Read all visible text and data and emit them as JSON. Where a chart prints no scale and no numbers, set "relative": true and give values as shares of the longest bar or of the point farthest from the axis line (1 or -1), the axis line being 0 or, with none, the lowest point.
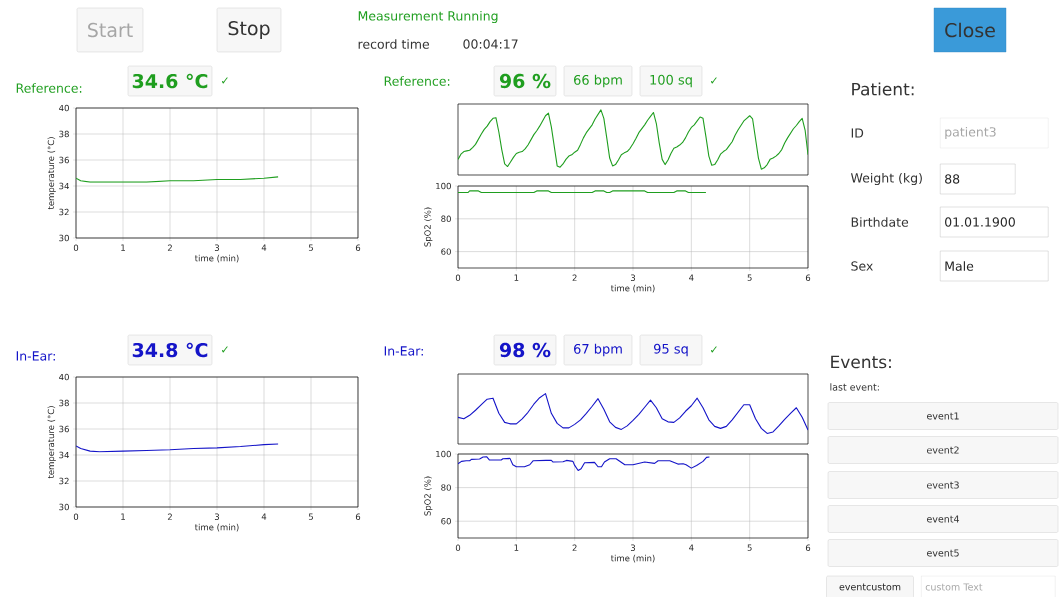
{
  "chart_data": [
    {
      "type": "other",
      "annotations": [
        "Start",
        "Stop",
        "Measurement Running",
        "record time",
        "00:04:17",
        "Close",
        "Patient:",
        "ID",
        "patient3",
        "Weight (kg)",
        "88",
        "Birthdate",
        "01.01.1900",
        "Sex",
        "Male",
        "Events:",
        "last event:",
        "event1",
        "event2",
        "event3",
        "event4",
        "event5",
        "eventcustom",
        "custom Text"
      ]
    },
    {
      "type": "line",
      "xlabel": "time (min)",
      "ylabel": "temperature (°C)",
      "xlim": [
        0,
        6
      ],
      "ylim": [
        30,
        40
      ],
      "xticks": [
        0,
        1,
        2,
        3,
        4,
        5,
        6
      ],
      "yticks": [
        30,
        32,
        34,
        36,
        38,
        40
      ],
      "grid": true,
      "annotations": [
        "Reference:",
        "34.6 °C",
        "✓"
      ],
      "series": [
        {
          "color": "#1f9e1f",
          "x": [
            0,
            0.1,
            0.3,
            0.6,
            1,
            1.5,
            2,
            2.5,
            3,
            3.5,
            4,
            4.3
          ],
          "values": [
            34.6,
            34.4,
            34.3,
            34.3,
            34.3,
            34.3,
            34.4,
            34.4,
            34.5,
            34.5,
            34.6,
            34.7
          ]
        }
      ]
    },
    {
      "type": "line",
      "relative": true,
      "annotations": [
        "Reference:",
        "96 %",
        "66 bpm",
        "100 sq",
        "✓"
      ],
      "categories": [
        null,
        null,
        null,
        null,
        null,
        null,
        null,
        null,
        null,
        null,
        null,
        null,
        null,
        null,
        null,
        null,
        null,
        null,
        null,
        null,
        null,
        null,
        null,
        null,
        null,
        null,
        null,
        null,
        null,
        null,
        null,
        null,
        null,
        null,
        null,
        null,
        null,
        null,
        null,
        null,
        null,
        null,
        null,
        null,
        null,
        null,
        null,
        null,
        null,
        null,
        null,
        null,
        null,
        null,
        null,
        null,
        null,
        null,
        null,
        null,
        null,
        null,
        null,
        null,
        null,
        null,
        null,
        null,
        null,
        null,
        null,
        null,
        null,
        null,
        null,
        null,
        null,
        null,
        null,
        null,
        null,
        null,
        null,
        null,
        null,
        null,
        null,
        null,
        null,
        null,
        null,
        null,
        null,
        null,
        null,
        null,
        null,
        null,
        null,
        null,
        null,
        null,
        null,
        null,
        null,
        null,
        null,
        null,
        null,
        null,
        null,
        null,
        null,
        null,
        null,
        null,
        null,
        null,
        null,
        null,
        null
      ],
      "series": [
        {
          "color": "#1f9e1f",
          "values": [
            0.24,
            0.32,
            0.36,
            0.37,
            0.38,
            0.42,
            0.47,
            0.55,
            0.63,
            0.7,
            0.75,
            0.82,
            0.87,
            0.88,
            0.66,
            0.39,
            0.17,
            0.13,
            0.2,
            0.27,
            0.33,
            0.35,
            0.36,
            0.4,
            0.46,
            0.54,
            0.62,
            0.68,
            0.75,
            0.83,
            0.91,
            0.95,
            0.74,
            0.44,
            0.14,
            0.12,
            0.17,
            0.24,
            0.29,
            0.31,
            0.35,
            0.38,
            0.47,
            0.57,
            0.65,
            0.71,
            0.77,
            0.86,
            0.93,
            1.0,
            0.87,
            0.57,
            0.26,
            0.14,
            0.16,
            0.23,
            0.31,
            0.34,
            0.36,
            0.41,
            0.48,
            0.56,
            0.65,
            0.71,
            0.77,
            0.84,
            0.9,
            0.96,
            0.79,
            0.49,
            0.24,
            0.16,
            0.23,
            0.33,
            0.41,
            0.43,
            0.46,
            0.5,
            0.57,
            0.66,
            0.73,
            0.77,
            0.83,
            0.89,
            0.87,
            0.59,
            0.29,
            0.15,
            0.16,
            0.23,
            0.32,
            0.36,
            0.39,
            0.45,
            0.51,
            0.61,
            0.69,
            0.76,
            0.83,
            0.87,
            0.91,
            0.86,
            0.56,
            0.26,
            0.09,
            0.11,
            0.16,
            0.24,
            0.26,
            0.29,
            0.33,
            0.39,
            0.49,
            0.57,
            0.64,
            0.71,
            0.76,
            0.82,
            0.87,
            0.69,
            0.31
          ]
        }
      ]
    },
    {
      "type": "line",
      "xlabel": "time (min)",
      "ylabel": "SpO2 (%)",
      "xlim": [
        0,
        6
      ],
      "ylim": [
        50,
        100
      ],
      "xticks": [
        0,
        1,
        2,
        3,
        4,
        5,
        6
      ],
      "yticks": [
        60,
        80,
        100
      ],
      "grid": true,
      "series": [
        {
          "color": "#1f9e1f",
          "x": [
            0,
            0.17,
            0.2,
            0.35,
            0.4,
            1.3,
            1.35,
            1.55,
            1.6,
            2.3,
            2.35,
            2.5,
            2.55,
            2.6,
            2.65,
            3.2,
            3.25,
            3.7,
            3.75,
            3.9,
            3.95,
            4.25
          ],
          "values": [
            96,
            96,
            97,
            97,
            96,
            96,
            97,
            97,
            96,
            96,
            97,
            97,
            96,
            96,
            97,
            97,
            96,
            96,
            97,
            97,
            96,
            96
          ]
        }
      ]
    },
    {
      "type": "line",
      "xlabel": "time (min)",
      "ylabel": "temperature (°C)",
      "xlim": [
        0,
        6
      ],
      "ylim": [
        30,
        40
      ],
      "xticks": [
        0,
        1,
        2,
        3,
        4,
        5,
        6
      ],
      "yticks": [
        30,
        32,
        34,
        36,
        38,
        40
      ],
      "grid": true,
      "annotations": [
        "In-Ear:",
        "34.8 °C",
        "✓"
      ],
      "series": [
        {
          "color": "#1414c8",
          "x": [
            0,
            0.1,
            0.3,
            0.5,
            1,
            1.5,
            2,
            2.5,
            3,
            3.5,
            4,
            4.3
          ],
          "values": [
            34.7,
            34.5,
            34.3,
            34.25,
            34.3,
            34.35,
            34.4,
            34.5,
            34.55,
            34.65,
            34.8,
            34.85
          ]
        }
      ]
    },
    {
      "type": "line",
      "relative": true,
      "annotations": [
        "In-Ear:",
        "98 %",
        "67 bpm",
        "95 sq",
        "✓"
      ],
      "categories": [
        null,
        null,
        null,
        null,
        null,
        null,
        null,
        null,
        null,
        null,
        null,
        null,
        null,
        null,
        null,
        null,
        null,
        null,
        null,
        null,
        null,
        null,
        null,
        null,
        null,
        null,
        null,
        null,
        null,
        null,
        null,
        null,
        null,
        null,
        null,
        null,
        null,
        null,
        null,
        null,
        null,
        null,
        null,
        null,
        null,
        null,
        null,
        null,
        null,
        null,
        null,
        null,
        null,
        null,
        null,
        null,
        null,
        null,
        null,
        null,
        null
      ],
      "series": [
        {
          "color": "#1414c8",
          "values": [
            0.53,
            0.5,
            0.57,
            0.67,
            0.78,
            0.89,
            0.91,
            0.61,
            0.43,
            0.4,
            0.4,
            0.5,
            0.63,
            0.79,
            0.92,
            1.0,
            0.61,
            0.41,
            0.32,
            0.32,
            0.39,
            0.48,
            0.61,
            0.75,
            0.9,
            0.69,
            0.44,
            0.33,
            0.29,
            0.36,
            0.47,
            0.59,
            0.73,
            0.87,
            0.72,
            0.5,
            0.44,
            0.43,
            0.52,
            0.65,
            0.76,
            0.91,
            0.72,
            0.48,
            0.35,
            0.31,
            0.35,
            0.48,
            0.63,
            0.78,
            0.78,
            0.5,
            0.31,
            0.21,
            0.24,
            0.36,
            0.49,
            0.61,
            0.72,
            0.53,
            0.28
          ]
        }
      ]
    },
    {
      "type": "line",
      "xlabel": "time (min)",
      "ylabel": "SpO2 (%)",
      "xlim": [
        0,
        6
      ],
      "ylim": [
        50,
        100
      ],
      "xticks": [
        0,
        1,
        2,
        3,
        4,
        5,
        6
      ],
      "yticks": [
        60,
        80,
        100
      ],
      "grid": true,
      "series": [
        {
          "color": "#1414c8",
          "x": [
            0,
            0.06,
            0.14,
            0.2,
            0.23,
            0.37,
            0.43,
            0.49,
            0.54,
            0.74,
            0.77,
            0.89,
            0.94,
            1.0,
            1.14,
            1.23,
            1.29,
            1.51,
            1.6,
            1.63,
            1.8,
            1.86,
            1.97,
            2.0,
            2.06,
            2.11,
            2.17,
            2.34,
            2.4,
            2.46,
            2.51,
            2.6,
            2.71,
            2.86,
            3.0,
            3.09,
            3.2,
            3.37,
            3.43,
            3.63,
            3.77,
            3.86,
            3.91,
            4.0,
            4.09,
            4.2,
            4.26,
            4.31
          ],
          "values": [
            94.2,
            95.6,
            96,
            96,
            96.8,
            97,
            98.2,
            98.4,
            96.4,
            96.4,
            97.2,
            97.4,
            93.6,
            92.4,
            92.4,
            93.6,
            96,
            96.2,
            96.2,
            95.2,
            95.4,
            96.2,
            95.6,
            93.2,
            90.2,
            91.2,
            94.8,
            95,
            92.4,
            92.4,
            95.2,
            97.2,
            97.2,
            93.6,
            93.6,
            94.4,
            95.2,
            94.4,
            96,
            96,
            94,
            94.2,
            93.6,
            91.6,
            93.2,
            95.6,
            98,
            98.2
          ]
        }
      ]
    }
  ]
}
